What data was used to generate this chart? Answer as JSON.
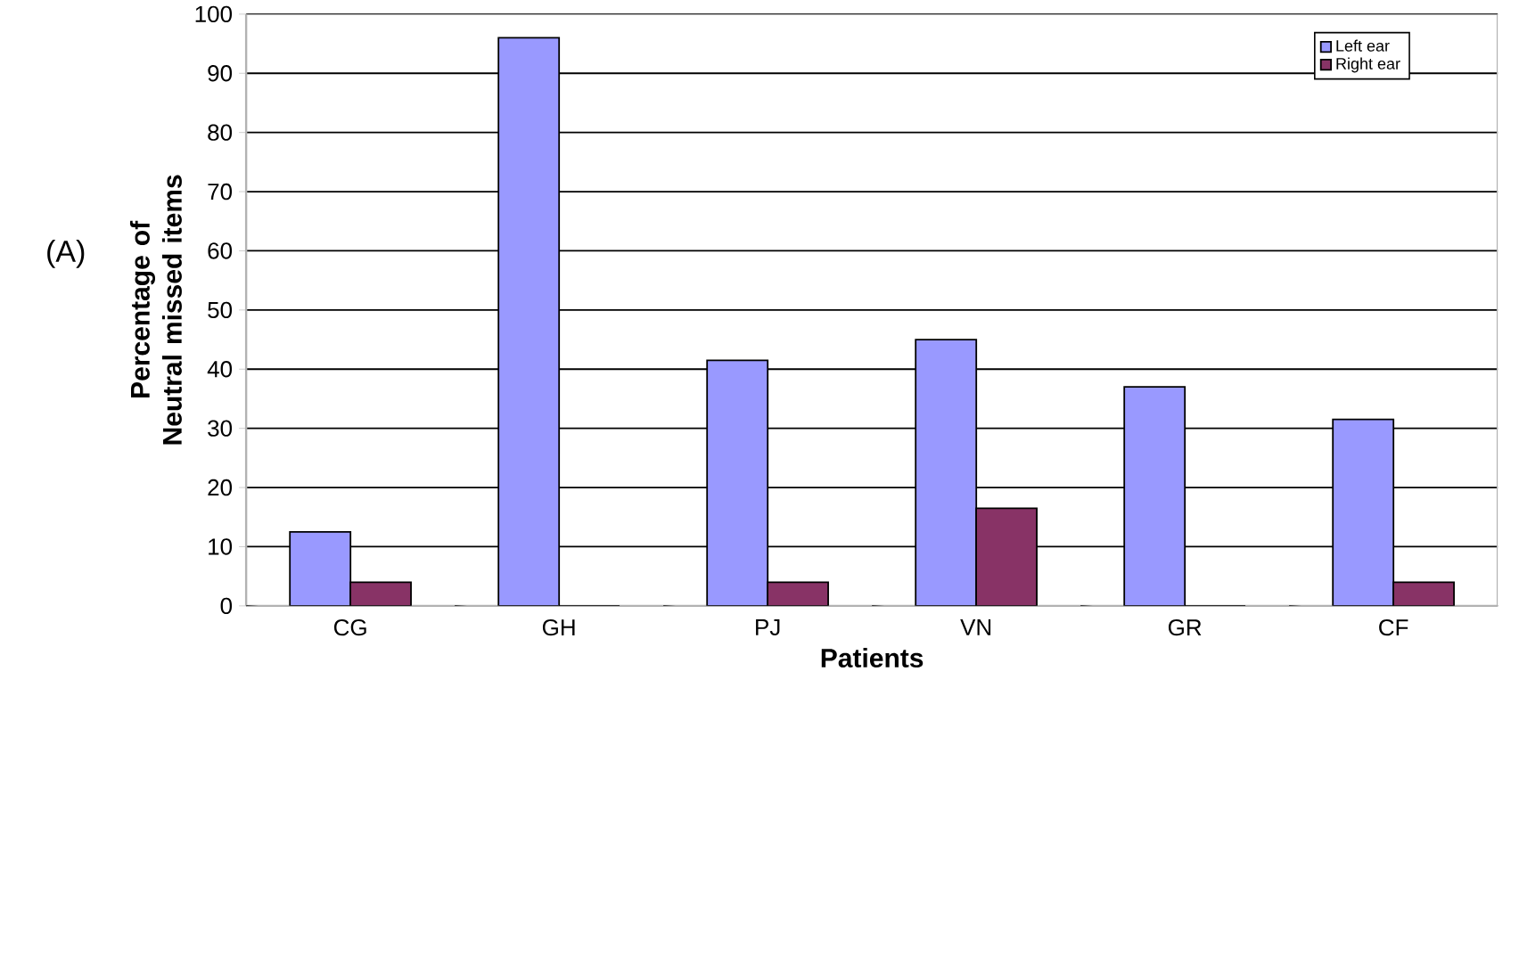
{
  "chart_data": {
    "type": "bar",
    "title": "(A)",
    "xlabel": "Patients",
    "ylabel": "Percentage of Neutral missed items",
    "categories": [
      "CG",
      "GH",
      "PJ",
      "VN",
      "GR",
      "CF"
    ],
    "series": [
      {
        "name": "Left ear",
        "color": "#9999ff",
        "values": [
          12.5,
          96,
          41.5,
          45,
          37,
          31.5
        ]
      },
      {
        "name": "Right ear",
        "color": "#883366",
        "values": [
          4,
          0,
          4,
          16.5,
          0,
          4
        ]
      }
    ],
    "ylim": [
      0,
      100
    ],
    "yticks": [
      0,
      10,
      20,
      30,
      40,
      50,
      60,
      70,
      80,
      90,
      100
    ],
    "grid": "y",
    "legend": "top right"
  }
}
